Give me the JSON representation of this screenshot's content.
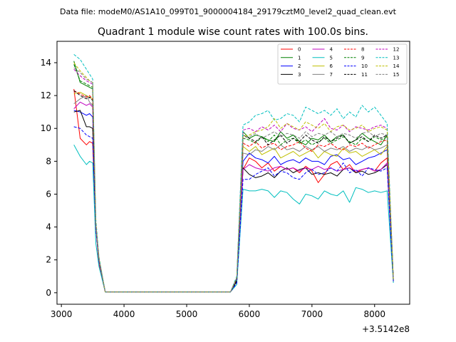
{
  "chart_data": {
    "type": "line",
    "suptitle": "Data file: modeM0/AS1A10_099T01_9000004184_29179cztM0_level2_quad_clean.evt",
    "title": "Quadrant 1 module wise count rates with 100.0s bins.",
    "xlabel": "",
    "ylabel": "",
    "x_offset_label": "+3.5142e8",
    "xlim": [
      2930,
      8560
    ],
    "ylim": [
      -0.7,
      15.3
    ],
    "xticks": [
      3000,
      4000,
      5000,
      6000,
      7000,
      8000
    ],
    "yticks": [
      0,
      2,
      4,
      6,
      8,
      10,
      12,
      14
    ],
    "grid": false,
    "legend": {
      "placement": "top-right",
      "columns": 4
    },
    "x": [
      3200,
      3300,
      3400,
      3450,
      3500,
      3550,
      3600,
      3700,
      3800,
      3900,
      4000,
      4500,
      5000,
      5500,
      5700,
      5800,
      5900,
      6000,
      6100,
      6200,
      6300,
      6400,
      6500,
      6600,
      6700,
      6800,
      6900,
      7000,
      7100,
      7200,
      7300,
      7400,
      7500,
      7600,
      7700,
      7800,
      7900,
      8000,
      8100,
      8200,
      8300
    ],
    "series": [
      {
        "name": "0",
        "color": "#ff0000",
        "dash": false,
        "values": [
          12.4,
          9.4,
          9.0,
          9.2,
          9.1,
          4.0,
          1.7,
          0.05,
          0.05,
          0.05,
          0.05,
          0.05,
          0.05,
          0.05,
          0.05,
          0.9,
          7.5,
          8.2,
          8.0,
          7.6,
          7.9,
          7.4,
          7.7,
          7.5,
          7.6,
          7.3,
          7.7,
          7.4,
          6.7,
          7.2,
          7.8,
          8.0,
          7.5,
          7.8,
          7.3,
          7.5,
          7.6,
          7.4,
          7.9,
          8.2,
          0.7
        ]
      },
      {
        "name": "1",
        "color": "#008000",
        "dash": false,
        "values": [
          14.1,
          12.8,
          12.6,
          12.5,
          12.4,
          4.0,
          2.0,
          0.05,
          0.05,
          0.05,
          0.05,
          0.05,
          0.05,
          0.05,
          0.05,
          0.7,
          9.8,
          9.4,
          9.6,
          9.5,
          9.3,
          9.2,
          9.8,
          9.4,
          9.6,
          9.2,
          9.0,
          9.4,
          9.3,
          9.6,
          9.2,
          9.5,
          9.6,
          9.1,
          9.3,
          9.7,
          9.4,
          9.2,
          9.0,
          9.6,
          0.8
        ]
      },
      {
        "name": "2",
        "color": "#0000ff",
        "dash": false,
        "values": [
          11.1,
          11.0,
          10.8,
          10.9,
          10.7,
          4.0,
          2.0,
          0.05,
          0.05,
          0.05,
          0.05,
          0.05,
          0.05,
          0.05,
          0.05,
          0.8,
          8.0,
          8.5,
          8.2,
          8.1,
          7.9,
          8.3,
          7.8,
          8.0,
          8.1,
          7.9,
          8.2,
          8.0,
          8.0,
          7.8,
          8.3,
          8.4,
          8.1,
          8.2,
          7.8,
          8.0,
          8.2,
          8.3,
          8.5,
          8.7,
          0.8
        ]
      },
      {
        "name": "3",
        "color": "#000000",
        "dash": false,
        "values": [
          11.0,
          11.1,
          10.1,
          10.1,
          10.0,
          4.0,
          2.0,
          0.05,
          0.05,
          0.05,
          0.05,
          0.05,
          0.05,
          0.05,
          0.05,
          0.7,
          7.6,
          7.2,
          7.0,
          7.1,
          7.3,
          7.0,
          7.4,
          7.6,
          7.3,
          7.5,
          7.6,
          7.2,
          7.3,
          7.2,
          7.3,
          7.1,
          7.5,
          7.6,
          7.3,
          7.4,
          7.2,
          7.3,
          7.5,
          7.8,
          0.7
        ]
      },
      {
        "name": "4",
        "color": "#bf00bf",
        "dash": false,
        "values": [
          11.2,
          11.6,
          11.4,
          11.5,
          11.3,
          4.0,
          2.0,
          0.05,
          0.05,
          0.05,
          0.05,
          0.05,
          0.05,
          0.05,
          0.05,
          0.8,
          7.5,
          7.8,
          7.6,
          7.5,
          7.4,
          7.6,
          7.7,
          7.5,
          7.6,
          7.4,
          7.6,
          7.5,
          7.7,
          7.5,
          7.6,
          7.4,
          7.5,
          7.6,
          7.4,
          7.5,
          7.6,
          7.4,
          7.5,
          7.9,
          0.7
        ]
      },
      {
        "name": "5",
        "color": "#00bfbf",
        "dash": false,
        "values": [
          9.0,
          8.3,
          7.8,
          8.0,
          7.9,
          3.0,
          1.6,
          0.05,
          0.05,
          0.05,
          0.05,
          0.05,
          0.05,
          0.05,
          0.05,
          0.5,
          6.3,
          6.2,
          6.2,
          6.3,
          6.2,
          5.8,
          6.2,
          6.1,
          5.7,
          5.4,
          6.0,
          5.9,
          5.7,
          6.2,
          6.0,
          5.9,
          6.2,
          5.5,
          6.4,
          6.3,
          6.1,
          6.2,
          6.1,
          6.2,
          0.6
        ]
      },
      {
        "name": "6",
        "color": "#bfbf00",
        "dash": false,
        "values": [
          12.1,
          12.2,
          12.0,
          11.9,
          11.8,
          4.0,
          2.0,
          0.05,
          0.05,
          0.05,
          0.05,
          0.05,
          0.05,
          0.05,
          0.05,
          0.8,
          8.9,
          8.6,
          8.9,
          8.4,
          8.6,
          8.8,
          8.2,
          8.4,
          8.6,
          8.3,
          8.5,
          8.7,
          8.2,
          8.6,
          8.4,
          8.3,
          8.8,
          8.5,
          8.6,
          8.3,
          8.5,
          8.7,
          8.4,
          8.9,
          0.7
        ]
      },
      {
        "name": "7",
        "color": "#808080",
        "dash": false,
        "values": [
          11.5,
          11.8,
          12.0,
          11.6,
          11.4,
          4.0,
          2.0,
          0.05,
          0.05,
          0.05,
          0.05,
          0.05,
          0.05,
          0.05,
          0.05,
          0.8,
          8.5,
          8.4,
          8.7,
          8.6,
          8.9,
          8.7,
          9.0,
          8.7,
          8.8,
          8.6,
          8.9,
          8.7,
          8.9,
          8.6,
          8.8,
          8.7,
          8.9,
          8.6,
          8.8,
          8.7,
          8.9,
          8.7,
          8.8,
          9.0,
          0.7
        ]
      },
      {
        "name": "8",
        "color": "#ff0000",
        "dash": true,
        "values": [
          12.3,
          12.1,
          11.9,
          12.0,
          11.8,
          4.0,
          2.0,
          0.05,
          0.05,
          0.05,
          0.05,
          0.05,
          0.05,
          0.05,
          0.05,
          0.8,
          9.1,
          8.9,
          9.2,
          8.8,
          9.0,
          9.1,
          8.7,
          8.9,
          9.0,
          9.2,
          8.8,
          8.6,
          9.0,
          8.9,
          9.1,
          8.8,
          8.7,
          9.0,
          8.9,
          9.1,
          8.8,
          9.0,
          9.2,
          9.3,
          0.8
        ]
      },
      {
        "name": "9",
        "color": "#008000",
        "dash": true,
        "values": [
          13.9,
          12.9,
          12.7,
          12.6,
          12.5,
          4.0,
          2.0,
          0.05,
          0.05,
          0.05,
          0.05,
          0.05,
          0.05,
          0.05,
          0.05,
          0.8,
          9.4,
          9.3,
          9.1,
          9.5,
          9.2,
          9.6,
          9.0,
          9.3,
          9.4,
          9.1,
          9.3,
          9.0,
          9.2,
          9.4,
          9.1,
          9.3,
          9.5,
          9.2,
          9.0,
          9.4,
          9.2,
          9.5,
          9.3,
          9.5,
          0.8
        ]
      },
      {
        "name": "10",
        "color": "#0000ff",
        "dash": true,
        "values": [
          10.1,
          10.0,
          9.6,
          9.5,
          9.4,
          3.8,
          1.9,
          0.05,
          0.05,
          0.05,
          0.05,
          0.05,
          0.05,
          0.05,
          0.05,
          0.6,
          6.9,
          6.9,
          7.2,
          7.4,
          7.6,
          7.1,
          7.4,
          7.3,
          7.0,
          6.9,
          7.3,
          7.5,
          7.2,
          7.3,
          7.6,
          7.4,
          7.9,
          7.3,
          7.5,
          7.1,
          7.6,
          7.5,
          7.4,
          7.6,
          0.7
        ]
      },
      {
        "name": "11",
        "color": "#000000",
        "dash": true,
        "values": [
          12.3,
          12.0,
          11.8,
          11.9,
          11.7,
          4.0,
          2.0,
          0.05,
          0.05,
          0.05,
          0.05,
          0.05,
          0.05,
          0.05,
          0.05,
          0.8,
          9.6,
          9.4,
          9.2,
          9.5,
          9.0,
          9.3,
          9.6,
          9.1,
          9.4,
          9.2,
          9.6,
          9.3,
          9.1,
          9.5,
          9.2,
          9.4,
          9.6,
          9.1,
          9.3,
          9.5,
          9.2,
          9.6,
          9.4,
          9.6,
          0.8
        ]
      },
      {
        "name": "12",
        "color": "#bf00bf",
        "dash": true,
        "values": [
          13.6,
          13.2,
          12.9,
          12.8,
          12.7,
          4.0,
          2.0,
          0.05,
          0.05,
          0.05,
          0.05,
          0.05,
          0.05,
          0.05,
          0.05,
          0.9,
          9.9,
          10.0,
          9.8,
          10.1,
          9.9,
          10.2,
          9.8,
          10.3,
          10.0,
          9.9,
          10.1,
          9.8,
          10.2,
          10.6,
          10.0,
          9.9,
          10.2,
          9.8,
          10.1,
          10.0,
          9.9,
          10.1,
          10.2,
          10.0,
          0.8
        ]
      },
      {
        "name": "13",
        "color": "#00bfbf",
        "dash": true,
        "values": [
          14.5,
          14.2,
          13.6,
          13.3,
          13.0,
          4.5,
          2.2,
          0.05,
          0.05,
          0.05,
          0.05,
          0.05,
          0.05,
          0.05,
          0.05,
          1.0,
          10.2,
          10.4,
          10.8,
          10.9,
          11.1,
          10.5,
          10.6,
          10.9,
          10.8,
          10.4,
          11.3,
          11.1,
          10.9,
          11.1,
          10.8,
          11.2,
          10.6,
          11.0,
          10.7,
          11.4,
          11.0,
          11.3,
          10.8,
          10.3,
          0.9
        ]
      },
      {
        "name": "14",
        "color": "#bfbf00",
        "dash": true,
        "values": [
          14.0,
          13.5,
          13.1,
          12.9,
          12.8,
          4.3,
          2.1,
          0.05,
          0.05,
          0.05,
          0.05,
          0.05,
          0.05,
          0.05,
          0.05,
          0.9,
          9.5,
          9.6,
          9.8,
          9.9,
          10.1,
          10.6,
          10.0,
          10.3,
          10.1,
          9.9,
          10.4,
          10.2,
          10.0,
          10.3,
          9.8,
          10.1,
          10.2,
          9.9,
          10.0,
          10.2,
          9.8,
          10.0,
          10.1,
          9.9,
          0.8
        ]
      },
      {
        "name": "15",
        "color": "#808080",
        "dash": true,
        "values": [
          13.7,
          13.4,
          13.0,
          12.9,
          12.8,
          4.2,
          2.1,
          0.05,
          0.05,
          0.05,
          0.05,
          0.05,
          0.05,
          0.05,
          0.05,
          0.9,
          9.4,
          9.5,
          9.7,
          9.4,
          9.6,
          9.8,
          9.5,
          9.7,
          9.6,
          9.4,
          9.8,
          9.5,
          9.7,
          9.6,
          9.8,
          9.5,
          9.7,
          9.6,
          9.4,
          9.7,
          9.8,
          9.5,
          9.7,
          9.6,
          0.8
        ]
      }
    ]
  }
}
